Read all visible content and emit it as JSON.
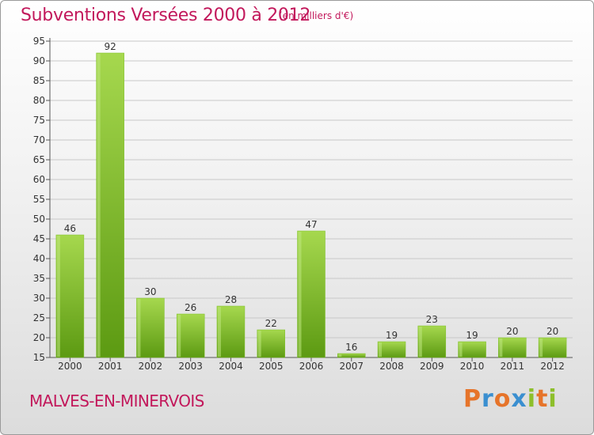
{
  "title": "Subventions Versées 2000 à 2012",
  "subtitle": "(en milliers d'€)",
  "commune": "MALVES-EN-MINERVOIS",
  "brand": {
    "text": "Proxiti",
    "colors": [
      "#e6742a",
      "#3a8fd0",
      "#e6742a",
      "#3a8fd0",
      "#8dbf2b",
      "#e6742a",
      "#8dbf2b"
    ]
  },
  "colors": {
    "accent": "#c2185b",
    "bar_light": "#a6d84e",
    "bar_dark": "#5c9a12"
  },
  "chart_data": {
    "type": "bar",
    "title": "Subventions Versées 2000 à 2012",
    "subtitle": "(en milliers d'€)",
    "categories": [
      "2000",
      "2001",
      "2002",
      "2003",
      "2004",
      "2005",
      "2006",
      "2007",
      "2008",
      "2009",
      "2010",
      "2011",
      "2012"
    ],
    "values": [
      46,
      92,
      30,
      26,
      28,
      22,
      47,
      16,
      19,
      23,
      19,
      20,
      20
    ],
    "ylim": [
      15,
      95
    ],
    "yticks": [
      15,
      20,
      25,
      30,
      35,
      40,
      45,
      50,
      55,
      60,
      65,
      70,
      75,
      80,
      85,
      90,
      95
    ],
    "grid": true,
    "legend": "none"
  }
}
